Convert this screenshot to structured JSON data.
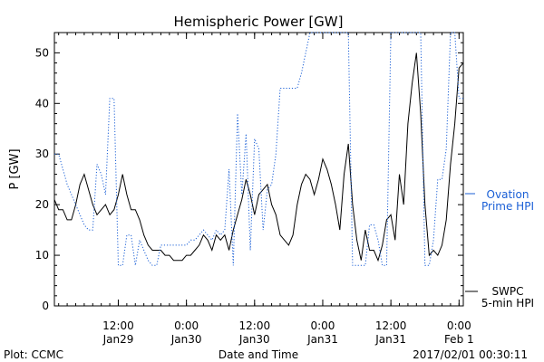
{
  "chart_data": {
    "type": "line",
    "title": "Hemispheric Power [GW]",
    "xlabel": "Date and Time",
    "ylabel": "P [GW]",
    "ylim": [
      0,
      54
    ],
    "xlim_hours": [
      0,
      96
    ],
    "y_ticks": [
      0,
      10,
      20,
      30,
      40,
      50
    ],
    "x_ticks": [
      {
        "hour": 15,
        "time": "12:00",
        "date": "Jan29"
      },
      {
        "hour": 31,
        "time": "0:00",
        "date": "Jan30"
      },
      {
        "hour": 47,
        "time": "12:00",
        "date": "Jan30"
      },
      {
        "hour": 63,
        "time": "0:00",
        "date": "Jan31"
      },
      {
        "hour": 79,
        "time": "12:00",
        "date": "Jan31"
      },
      {
        "hour": 95,
        "time": "0:00",
        "date": "Feb 1"
      }
    ],
    "series": [
      {
        "name": "SWPC 5-min HPI",
        "style": "solid",
        "color": "#000000",
        "x": [
          0,
          1,
          2,
          3,
          4,
          5,
          6,
          7,
          8,
          9,
          10,
          11,
          12,
          13,
          14,
          15,
          16,
          17,
          18,
          19,
          20,
          21,
          22,
          23,
          24,
          25,
          26,
          27,
          28,
          29,
          30,
          31,
          32,
          33,
          34,
          35,
          36,
          37,
          38,
          39,
          40,
          41,
          42,
          43,
          44,
          45,
          46,
          47,
          48,
          49,
          50,
          51,
          52,
          53,
          54,
          55,
          56,
          57,
          58,
          59,
          60,
          61,
          62,
          63,
          64,
          65,
          66,
          67,
          68,
          69,
          70,
          71,
          72,
          73,
          74,
          75,
          76,
          77,
          78,
          79,
          80,
          81,
          82,
          83,
          84,
          85,
          86,
          87,
          88,
          89,
          90,
          91,
          92,
          93,
          94,
          95,
          96
        ],
        "y": [
          21,
          19,
          19,
          17,
          17,
          20,
          24,
          26,
          23,
          20,
          18,
          19,
          20,
          18,
          19,
          22,
          26,
          22,
          19,
          19,
          17,
          14,
          12,
          11,
          11,
          11,
          10,
          10,
          9,
          9,
          9,
          10,
          10,
          11,
          12,
          14,
          13,
          11,
          14,
          13,
          14,
          11,
          15,
          18,
          21,
          25,
          22,
          18,
          22,
          23,
          24,
          20,
          18,
          14,
          13,
          12,
          14,
          20,
          24,
          26,
          25,
          22,
          25,
          29,
          27,
          24,
          20,
          15,
          26,
          32,
          20,
          13,
          9,
          15,
          11,
          11,
          9,
          12,
          17,
          18,
          13,
          26,
          20,
          36,
          44,
          50,
          38,
          20,
          10,
          11,
          10,
          12,
          17,
          28,
          36,
          47,
          48
        ]
      },
      {
        "name": "Ovation Prime HPI",
        "style": "dotted",
        "color": "#1a5fd6",
        "x": [
          0,
          1,
          2,
          3,
          4,
          5,
          6,
          7,
          8,
          9,
          10,
          11,
          12,
          13,
          14,
          15,
          16,
          17,
          18,
          19,
          20,
          21,
          22,
          23,
          24,
          25,
          26,
          27,
          28,
          29,
          30,
          31,
          32,
          33,
          34,
          35,
          36,
          37,
          38,
          39,
          40,
          41,
          42,
          43,
          44,
          45,
          46,
          47,
          48,
          49,
          50,
          51,
          52,
          53,
          54,
          55,
          56,
          57,
          58,
          59,
          60,
          61,
          62,
          63,
          64,
          65,
          66,
          67,
          68,
          69,
          70,
          71,
          72,
          73,
          74,
          75,
          76,
          77,
          78,
          79,
          80,
          81,
          82,
          83,
          84,
          85,
          86,
          87,
          88,
          89,
          90,
          91,
          92,
          93,
          94,
          95,
          96
        ],
        "y": [
          30,
          30,
          27,
          24,
          22,
          20,
          18,
          16,
          15,
          15,
          28,
          26,
          22,
          41,
          41,
          8,
          8,
          14,
          14,
          8,
          13,
          11,
          9,
          8,
          8,
          12,
          12,
          12,
          12,
          12,
          12,
          12,
          13,
          13,
          14,
          15,
          14,
          13,
          15,
          14,
          15,
          27,
          8,
          38,
          22,
          34,
          11,
          33,
          31,
          15,
          23,
          24,
          30,
          43,
          43,
          43,
          43,
          43,
          46,
          50,
          54,
          54,
          54,
          54,
          54,
          54,
          54,
          54,
          54,
          54,
          8,
          8,
          8,
          8,
          16,
          16,
          13,
          8,
          8,
          54,
          54,
          54,
          54,
          54,
          54,
          54,
          54,
          8,
          8,
          13,
          25,
          25,
          31,
          54,
          54,
          41,
          41
        ]
      }
    ],
    "legend": {
      "placement": "right",
      "ovation_lines": [
        "Ovation",
        "Prime HPI"
      ],
      "swpc_lines": [
        "SWPC",
        "5-min HPI"
      ]
    },
    "grid": false
  },
  "footer": {
    "left": "Plot: CCMC",
    "right": "2017/02/01 00:30:11"
  },
  "colors": {
    "ovation": "#1a5fd6",
    "swpc": "#000000"
  }
}
